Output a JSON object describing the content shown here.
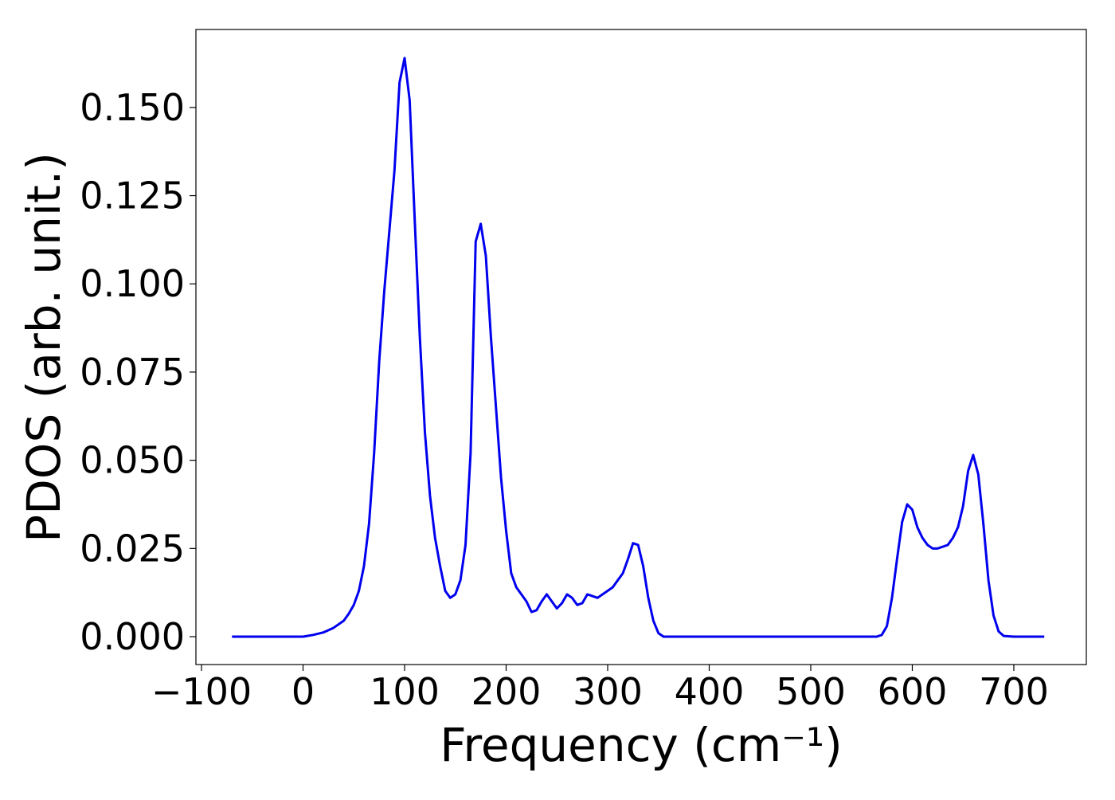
{
  "chart_data": {
    "type": "line",
    "xlabel": "Frequency (cm⁻¹)",
    "ylabel": "PDOS (arb. unit.)",
    "color": "#0000ee",
    "x": [
      -70,
      0,
      10,
      20,
      30,
      40,
      45,
      50,
      55,
      60,
      65,
      70,
      75,
      80,
      85,
      90,
      95,
      100,
      105,
      110,
      115,
      120,
      125,
      130,
      135,
      140,
      145,
      150,
      155,
      160,
      165,
      170,
      175,
      180,
      185,
      190,
      195,
      200,
      205,
      210,
      215,
      220,
      225,
      230,
      235,
      240,
      245,
      250,
      255,
      260,
      265,
      270,
      275,
      280,
      285,
      290,
      295,
      300,
      305,
      310,
      315,
      320,
      325,
      330,
      335,
      340,
      345,
      350,
      355,
      565,
      570,
      575,
      580,
      585,
      590,
      595,
      600,
      605,
      610,
      615,
      620,
      625,
      630,
      635,
      640,
      645,
      650,
      655,
      660,
      665,
      670,
      675,
      680,
      685,
      690,
      700,
      730
    ],
    "values": [
      0,
      0,
      0.0005,
      0.0012,
      0.0025,
      0.0045,
      0.0065,
      0.009,
      0.013,
      0.02,
      0.032,
      0.052,
      0.078,
      0.098,
      0.115,
      0.132,
      0.157,
      0.164,
      0.152,
      0.118,
      0.085,
      0.058,
      0.04,
      0.028,
      0.02,
      0.013,
      0.011,
      0.012,
      0.016,
      0.026,
      0.052,
      0.112,
      0.117,
      0.108,
      0.085,
      0.065,
      0.045,
      0.03,
      0.018,
      0.014,
      0.012,
      0.01,
      0.007,
      0.0075,
      0.01,
      0.012,
      0.01,
      0.008,
      0.0095,
      0.012,
      0.011,
      0.009,
      0.0095,
      0.012,
      0.0115,
      0.011,
      0.012,
      0.013,
      0.014,
      0.016,
      0.018,
      0.022,
      0.0265,
      0.026,
      0.02,
      0.011,
      0.0045,
      0.001,
      0,
      0,
      0.0005,
      0.003,
      0.011,
      0.022,
      0.0325,
      0.0375,
      0.036,
      0.031,
      0.028,
      0.026,
      0.025,
      0.025,
      0.0255,
      0.026,
      0.028,
      0.031,
      0.037,
      0.047,
      0.0515,
      0.046,
      0.032,
      0.016,
      0.006,
      0.0015,
      0.0002,
      0,
      0
    ],
    "xlim": [
      -105.5,
      771.4
    ],
    "ylim": [
      -0.0079,
      0.1721
    ],
    "xticks": [
      {
        "value": -100,
        "label": "−100"
      },
      0,
      100,
      200,
      300,
      400,
      500,
      600,
      700
    ],
    "yticks": [
      {
        "value": 0,
        "label": "0.000"
      },
      {
        "value": 0.025,
        "label": "0.025"
      },
      {
        "value": 0.05,
        "label": "0.050"
      },
      {
        "value": 0.075,
        "label": "0.075"
      },
      {
        "value": 0.1,
        "label": "0.100"
      },
      {
        "value": 0.125,
        "label": "0.125"
      },
      {
        "value": 0.15,
        "label": "0.150"
      }
    ],
    "grid": false
  }
}
